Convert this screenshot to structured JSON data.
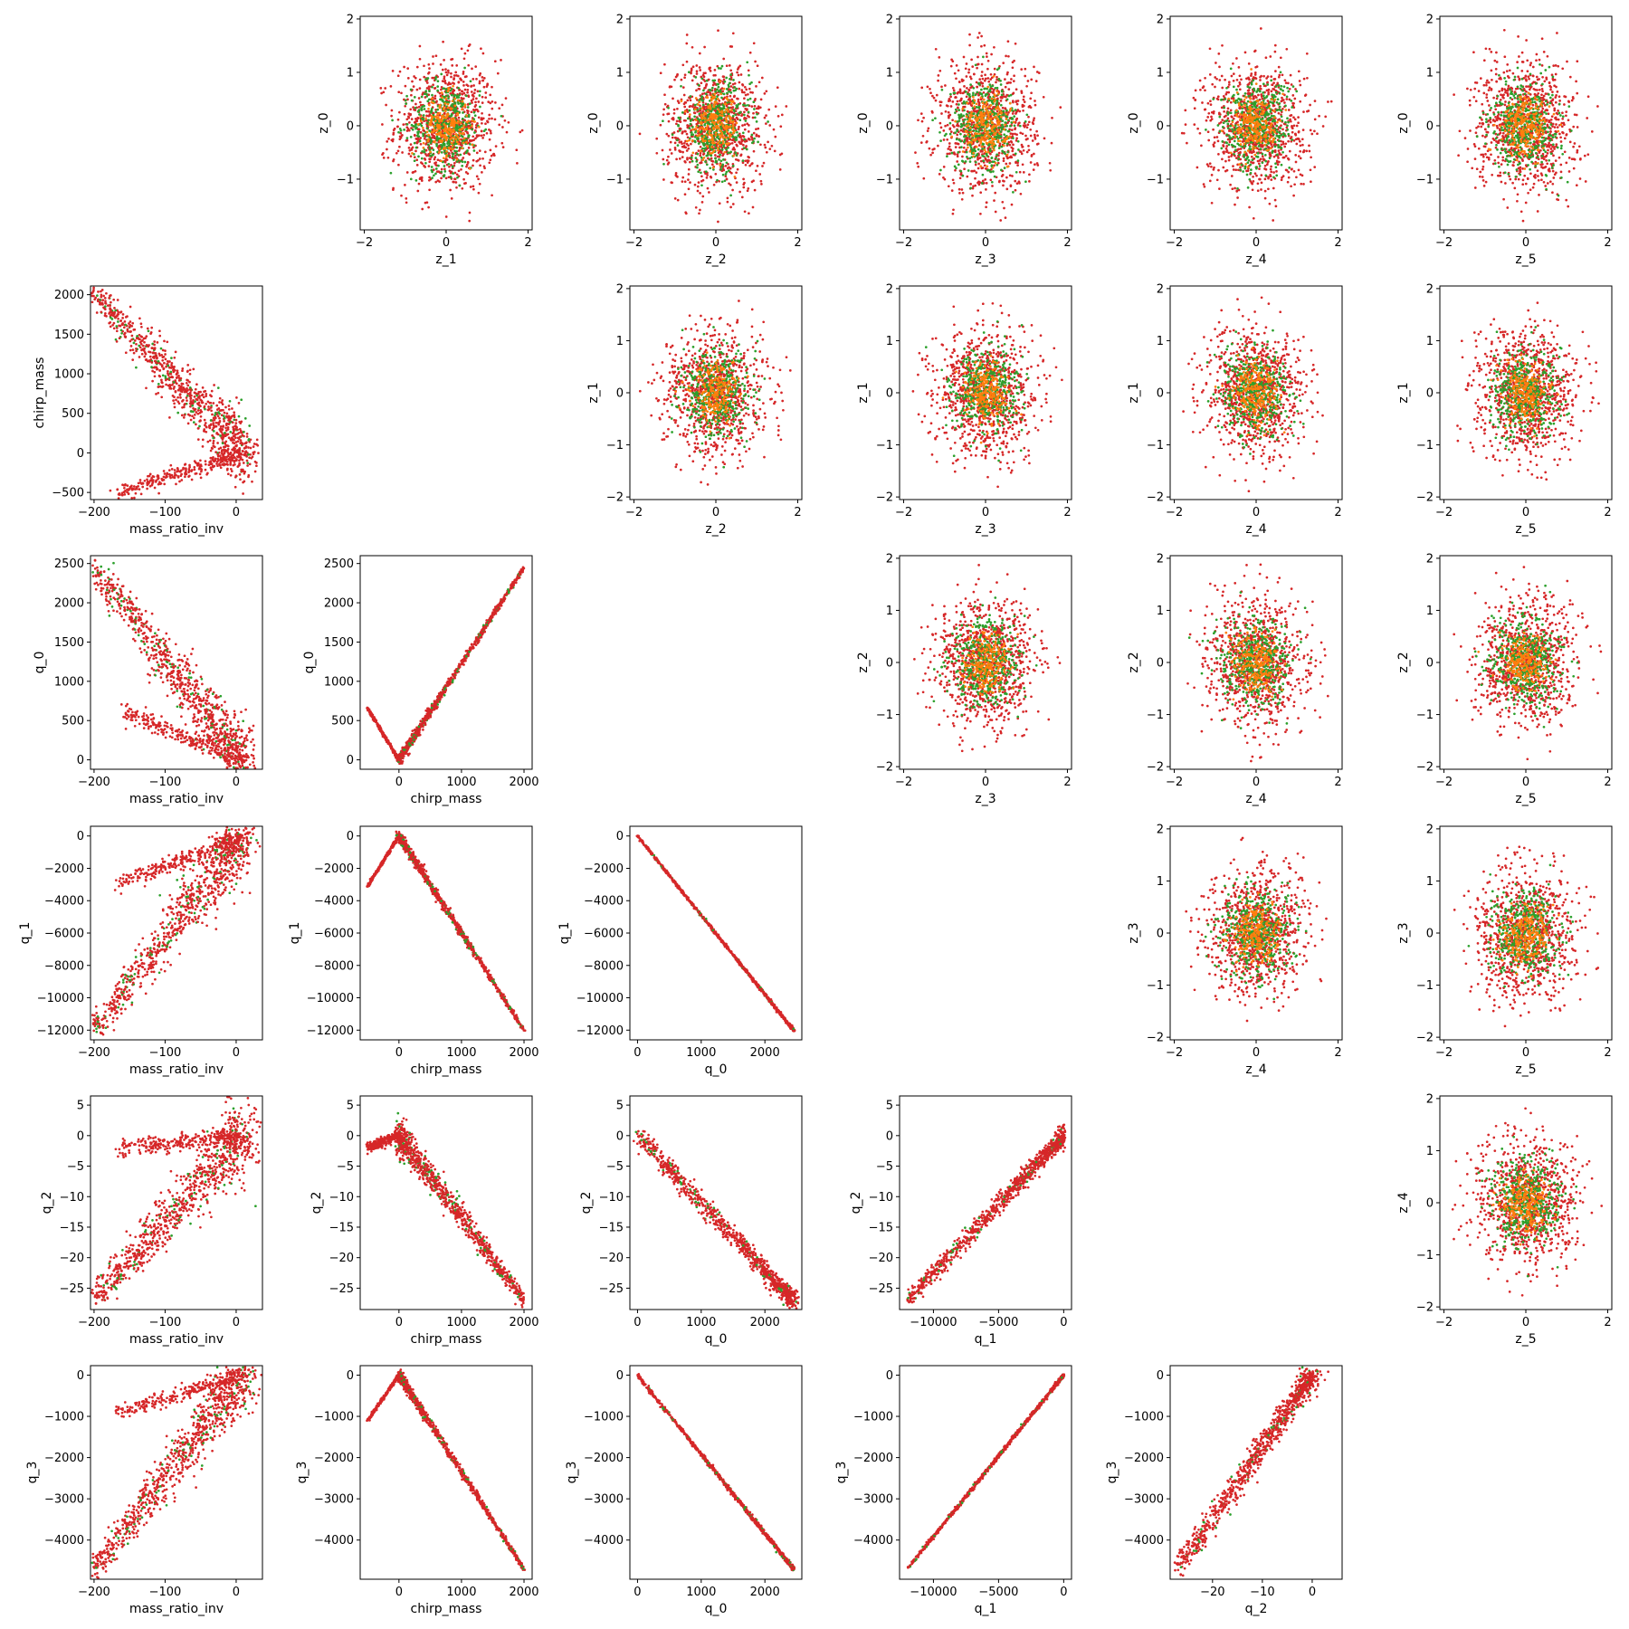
{
  "chart_data": {
    "type": "scatter",
    "layout": "pair-plot-grid-6x6",
    "colors": {
      "red": "#d62728",
      "green": "#2ca02c",
      "orange": "#ff7f0e"
    },
    "panels": [
      {
        "row": 0,
        "col": 1,
        "xlabel": "z_1",
        "ylabel": "z_0",
        "xticks": [
          -2,
          0,
          2
        ],
        "yticks": [
          -1,
          0,
          1,
          2
        ],
        "xlim": [
          -2.1,
          2.1
        ],
        "ylim": [
          -1.95,
          2.05
        ],
        "pattern": "blob"
      },
      {
        "row": 0,
        "col": 2,
        "xlabel": "z_2",
        "ylabel": "z_0",
        "xticks": [
          -2,
          0,
          2
        ],
        "yticks": [
          -1,
          0,
          1,
          2
        ],
        "xlim": [
          -2.1,
          2.1
        ],
        "ylim": [
          -1.95,
          2.05
        ],
        "pattern": "blob"
      },
      {
        "row": 0,
        "col": 3,
        "xlabel": "z_3",
        "ylabel": "z_0",
        "xticks": [
          -2,
          0,
          2
        ],
        "yticks": [
          -1,
          0,
          1,
          2
        ],
        "xlim": [
          -2.1,
          2.1
        ],
        "ylim": [
          -1.95,
          2.05
        ],
        "pattern": "blob"
      },
      {
        "row": 0,
        "col": 4,
        "xlabel": "z_4",
        "ylabel": "z_0",
        "xticks": [
          -2,
          0,
          2
        ],
        "yticks": [
          -1,
          0,
          1,
          2
        ],
        "xlim": [
          -2.1,
          2.1
        ],
        "ylim": [
          -1.95,
          2.05
        ],
        "pattern": "blob"
      },
      {
        "row": 0,
        "col": 5,
        "xlabel": "z_5",
        "ylabel": "z_0",
        "xticks": [
          -2,
          0,
          2
        ],
        "yticks": [
          -1,
          0,
          1,
          2
        ],
        "xlim": [
          -2.1,
          2.1
        ],
        "ylim": [
          -1.95,
          2.05
        ],
        "pattern": "blob"
      },
      {
        "row": 1,
        "col": 0,
        "xlabel": "mass_ratio_inv",
        "ylabel": "chirp_mass",
        "xticks": [
          -200,
          -100,
          0
        ],
        "yticks": [
          -500,
          0,
          500,
          1000,
          1500,
          2000
        ],
        "xlim": [
          -205,
          37
        ],
        "ylim": [
          -590,
          2110
        ],
        "pattern": "vshape",
        "ap": [
          -200,
          2000
        ],
        "bp": [
          10,
          0
        ],
        "cp": [
          -165,
          -500
        ],
        "jit": [
          6,
          90
        ]
      },
      {
        "row": 1,
        "col": 2,
        "xlabel": "z_2",
        "ylabel": "z_1",
        "xticks": [
          -2,
          0,
          2
        ],
        "yticks": [
          -2,
          -1,
          0,
          1,
          2
        ],
        "xlim": [
          -2.1,
          2.1
        ],
        "ylim": [
          -2.05,
          2.05
        ],
        "pattern": "blob"
      },
      {
        "row": 1,
        "col": 3,
        "xlabel": "z_3",
        "ylabel": "z_1",
        "xticks": [
          -2,
          0,
          2
        ],
        "yticks": [
          -2,
          -1,
          0,
          1,
          2
        ],
        "xlim": [
          -2.1,
          2.1
        ],
        "ylim": [
          -2.05,
          2.05
        ],
        "pattern": "blob"
      },
      {
        "row": 1,
        "col": 4,
        "xlabel": "z_4",
        "ylabel": "z_1",
        "xticks": [
          -2,
          0,
          2
        ],
        "yticks": [
          -2,
          -1,
          0,
          1,
          2
        ],
        "xlim": [
          -2.1,
          2.1
        ],
        "ylim": [
          -2.05,
          2.05
        ],
        "pattern": "blob"
      },
      {
        "row": 1,
        "col": 5,
        "xlabel": "z_5",
        "ylabel": "z_1",
        "xticks": [
          -2,
          0,
          2
        ],
        "yticks": [
          -2,
          -1,
          0,
          1,
          2
        ],
        "xlim": [
          -2.1,
          2.1
        ],
        "ylim": [
          -2.05,
          2.05
        ],
        "pattern": "blob"
      },
      {
        "row": 2,
        "col": 0,
        "xlabel": "mass_ratio_inv",
        "ylabel": "q_0",
        "xticks": [
          -200,
          -100,
          0
        ],
        "yticks": [
          0,
          500,
          1000,
          1500,
          2000,
          2500
        ],
        "xlim": [
          -205,
          37
        ],
        "ylim": [
          -120,
          2600
        ],
        "pattern": "vshape",
        "ap": [
          -200,
          2450
        ],
        "bp": [
          10,
          0
        ],
        "cp": [
          -165,
          620
        ],
        "jit": [
          6,
          90
        ]
      },
      {
        "row": 2,
        "col": 1,
        "xlabel": "chirp_mass",
        "ylabel": "q_0",
        "xticks": [
          0,
          1000,
          2000
        ],
        "yticks": [
          0,
          500,
          1000,
          1500,
          2000,
          2500
        ],
        "xlim": [
          -620,
          2130
        ],
        "ylim": [
          -120,
          2600
        ],
        "pattern": "vshape",
        "ap": [
          2000,
          2450
        ],
        "bp": [
          0,
          0
        ],
        "cp": [
          -500,
          650
        ],
        "jit": [
          10,
          12
        ]
      },
      {
        "row": 2,
        "col": 3,
        "xlabel": "z_3",
        "ylabel": "z_2",
        "xticks": [
          -2,
          0,
          2
        ],
        "yticks": [
          -2,
          -1,
          0,
          1,
          2
        ],
        "xlim": [
          -2.1,
          2.1
        ],
        "ylim": [
          -2.05,
          2.05
        ],
        "pattern": "blob"
      },
      {
        "row": 2,
        "col": 4,
        "xlabel": "z_4",
        "ylabel": "z_2",
        "xticks": [
          -2,
          0,
          2
        ],
        "yticks": [
          -2,
          -1,
          0,
          1,
          2
        ],
        "xlim": [
          -2.1,
          2.1
        ],
        "ylim": [
          -2.05,
          2.05
        ],
        "pattern": "blob"
      },
      {
        "row": 2,
        "col": 5,
        "xlabel": "z_5",
        "ylabel": "z_2",
        "xticks": [
          -2,
          0,
          2
        ],
        "yticks": [
          -2,
          -1,
          0,
          1,
          2
        ],
        "xlim": [
          -2.1,
          2.1
        ],
        "ylim": [
          -2.05,
          2.05
        ],
        "pattern": "blob"
      },
      {
        "row": 3,
        "col": 0,
        "xlabel": "mass_ratio_inv",
        "ylabel": "q_1",
        "xticks": [
          -200,
          -100,
          0
        ],
        "yticks": [
          -12000,
          -10000,
          -8000,
          -6000,
          -4000,
          -2000,
          0
        ],
        "xlim": [
          -205,
          37
        ],
        "ylim": [
          -12600,
          600
        ],
        "pattern": "vshape",
        "ap": [
          -200,
          -12000
        ],
        "bp": [
          10,
          0
        ],
        "cp": [
          -165,
          -3000
        ],
        "jit": [
          6,
          450
        ]
      },
      {
        "row": 3,
        "col": 1,
        "xlabel": "chirp_mass",
        "ylabel": "q_1",
        "xticks": [
          0,
          1000,
          2000
        ],
        "yticks": [
          -12000,
          -10000,
          -8000,
          -6000,
          -4000,
          -2000,
          0
        ],
        "xlim": [
          -620,
          2130
        ],
        "ylim": [
          -12600,
          600
        ],
        "pattern": "vshape",
        "ap": [
          2000,
          -12000
        ],
        "bp": [
          0,
          0
        ],
        "cp": [
          -500,
          -3100
        ],
        "jit": [
          10,
          60
        ]
      },
      {
        "row": 3,
        "col": 2,
        "xlabel": "q_0",
        "ylabel": "q_1",
        "xticks": [
          0,
          1000,
          2000
        ],
        "yticks": [
          -12000,
          -10000,
          -8000,
          -6000,
          -4000,
          -2000,
          0
        ],
        "xlim": [
          -120,
          2580
        ],
        "ylim": [
          -12600,
          600
        ],
        "pattern": "line",
        "ap": [
          0,
          0
        ],
        "bp": [
          2450,
          -12000
        ],
        "jit": [
          8,
          40
        ]
      },
      {
        "row": 3,
        "col": 4,
        "xlabel": "z_4",
        "ylabel": "z_3",
        "xticks": [
          -2,
          0,
          2
        ],
        "yticks": [
          -2,
          -1,
          0,
          1,
          2
        ],
        "xlim": [
          -2.1,
          2.1
        ],
        "ylim": [
          -2.05,
          2.05
        ],
        "pattern": "blob"
      },
      {
        "row": 3,
        "col": 5,
        "xlabel": "z_5",
        "ylabel": "z_3",
        "xticks": [
          -2,
          0,
          2
        ],
        "yticks": [
          -2,
          -1,
          0,
          1,
          2
        ],
        "xlim": [
          -2.1,
          2.1
        ],
        "ylim": [
          -2.05,
          2.05
        ],
        "pattern": "blob"
      },
      {
        "row": 4,
        "col": 0,
        "xlabel": "mass_ratio_inv",
        "ylabel": "q_2",
        "xticks": [
          -200,
          -100,
          0
        ],
        "yticks": [
          -25,
          -20,
          -15,
          -10,
          -5,
          0,
          5
        ],
        "xlim": [
          -205,
          37
        ],
        "ylim": [
          -28.5,
          6.5
        ],
        "pattern": "vshape",
        "ap": [
          -200,
          -27
        ],
        "bp": [
          10,
          0
        ],
        "cp": [
          -165,
          -2
        ],
        "jit": [
          7,
          1.2
        ]
      },
      {
        "row": 4,
        "col": 1,
        "xlabel": "chirp_mass",
        "ylabel": "q_2",
        "xticks": [
          0,
          1000,
          2000
        ],
        "yticks": [
          -25,
          -20,
          -15,
          -10,
          -5,
          0,
          5
        ],
        "xlim": [
          -620,
          2130
        ],
        "ylim": [
          -28.5,
          6.5
        ],
        "pattern": "vshape",
        "ap": [
          2000,
          -27
        ],
        "bp": [
          0,
          0
        ],
        "cp": [
          -500,
          -2
        ],
        "jit": [
          20,
          0.6
        ]
      },
      {
        "row": 4,
        "col": 2,
        "xlabel": "q_0",
        "ylabel": "q_2",
        "xticks": [
          0,
          1000,
          2000
        ],
        "yticks": [
          -25,
          -20,
          -15,
          -10,
          -5,
          0,
          5
        ],
        "xlim": [
          -120,
          2580
        ],
        "ylim": [
          -28.5,
          6.5
        ],
        "pattern": "line",
        "ap": [
          0,
          0
        ],
        "bp": [
          2450,
          -27
        ],
        "jit": [
          40,
          0.8
        ]
      },
      {
        "row": 4,
        "col": 3,
        "xlabel": "q_1",
        "ylabel": "q_2",
        "xticks": [
          -10000,
          -5000,
          0
        ],
        "yticks": [
          -25,
          -20,
          -15,
          -10,
          -5,
          0,
          5
        ],
        "xlim": [
          -12600,
          600
        ],
        "ylim": [
          -28.5,
          6.5
        ],
        "pattern": "line",
        "ap": [
          -12000,
          -27
        ],
        "bp": [
          0,
          0
        ],
        "jit": [
          120,
          0.8
        ]
      },
      {
        "row": 4,
        "col": 5,
        "xlabel": "z_5",
        "ylabel": "z_4",
        "xticks": [
          -2,
          0,
          2
        ],
        "yticks": [
          -2,
          -1,
          0,
          1,
          2
        ],
        "xlim": [
          -2.1,
          2.1
        ],
        "ylim": [
          -2.05,
          2.05
        ],
        "pattern": "blob"
      },
      {
        "row": 5,
        "col": 0,
        "xlabel": "mass_ratio_inv",
        "ylabel": "q_3",
        "xticks": [
          -200,
          -100,
          0
        ],
        "yticks": [
          -4000,
          -3000,
          -2000,
          -1000,
          0
        ],
        "xlim": [
          -205,
          37
        ],
        "ylim": [
          -4950,
          230
        ],
        "pattern": "vshape",
        "ap": [
          -200,
          -4700
        ],
        "bp": [
          10,
          0
        ],
        "cp": [
          -165,
          -900
        ],
        "jit": [
          6,
          160
        ]
      },
      {
        "row": 5,
        "col": 1,
        "xlabel": "chirp_mass",
        "ylabel": "q_3",
        "xticks": [
          0,
          1000,
          2000
        ],
        "yticks": [
          -4000,
          -3000,
          -2000,
          -1000,
          0
        ],
        "xlim": [
          -620,
          2130
        ],
        "ylim": [
          -4950,
          230
        ],
        "pattern": "vshape",
        "ap": [
          2000,
          -4700
        ],
        "bp": [
          0,
          0
        ],
        "cp": [
          -500,
          -1100
        ],
        "jit": [
          10,
          25
        ]
      },
      {
        "row": 5,
        "col": 2,
        "xlabel": "q_0",
        "ylabel": "q_3",
        "xticks": [
          0,
          1000,
          2000
        ],
        "yticks": [
          -4000,
          -3000,
          -2000,
          -1000,
          0
        ],
        "xlim": [
          -120,
          2580
        ],
        "ylim": [
          -4950,
          230
        ],
        "pattern": "line",
        "ap": [
          0,
          0
        ],
        "bp": [
          2450,
          -4700
        ],
        "jit": [
          8,
          25
        ]
      },
      {
        "row": 5,
        "col": 3,
        "xlabel": "q_1",
        "ylabel": "q_3",
        "xticks": [
          -10000,
          -5000,
          0
        ],
        "yticks": [
          -4000,
          -3000,
          -2000,
          -1000,
          0
        ],
        "xlim": [
          -12600,
          600
        ],
        "ylim": [
          -4950,
          230
        ],
        "pattern": "line",
        "ap": [
          -12000,
          -4700
        ],
        "bp": [
          0,
          0
        ],
        "jit": [
          40,
          20
        ]
      },
      {
        "row": 5,
        "col": 4,
        "xlabel": "q_2",
        "ylabel": "q_3",
        "xticks": [
          -20,
          -10,
          0
        ],
        "yticks": [
          -4000,
          -3000,
          -2000,
          -1000,
          0
        ],
        "xlim": [
          -28.5,
          6
        ],
        "ylim": [
          -4950,
          230
        ],
        "pattern": "line",
        "ap": [
          -27,
          -4700
        ],
        "bp": [
          0,
          0
        ],
        "jit": [
          0.9,
          120
        ]
      }
    ]
  }
}
